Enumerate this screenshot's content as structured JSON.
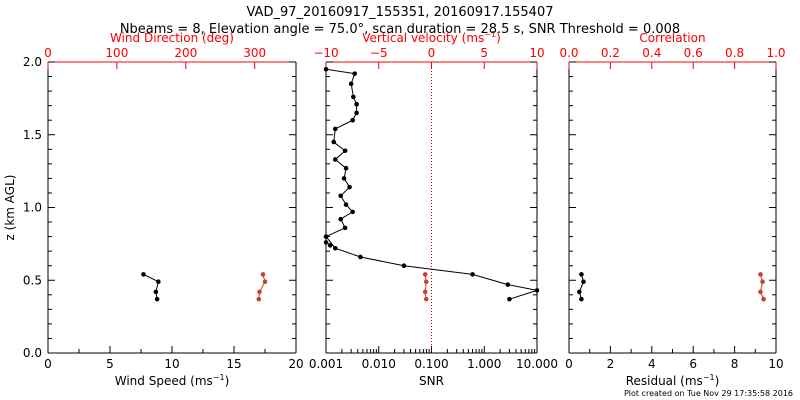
{
  "header": {
    "title": "VAD_97_20160917_155351, 20160917.155407",
    "subtitle": "Nbeams = 8, Elevation angle = 75.0°, scan duration = 28.5 s, SNR Threshold = 0.008"
  },
  "footer": {
    "credit": "Plot created on Tue Nov 29 17:35:58 2016"
  },
  "colors": {
    "primary": "#000000",
    "secondary": "#c8412c",
    "axis_red": "#ff0000",
    "dotted": "#cc0000"
  },
  "chart_data": [
    {
      "id": "panel1",
      "type": "scatter",
      "ylabel": "z (km AGL)",
      "ylim": [
        0.0,
        2.0
      ],
      "yticks": [
        0.0,
        0.5,
        1.0,
        1.5,
        2.0
      ],
      "ytick_labels": [
        "0.0",
        "0.5",
        "1.0",
        "1.5",
        "2.0"
      ],
      "bottom_axis": {
        "label": "Wind Speed (ms",
        "label_sup": "−1",
        "label_end": ")",
        "range": [
          0,
          20
        ],
        "ticks": [
          0,
          5,
          10,
          15,
          20
        ],
        "tick_labels": [
          "0",
          "5",
          "10",
          "15",
          "20"
        ]
      },
      "top_axis": {
        "label": "Wind Direction (deg)",
        "range": [
          0,
          360
        ],
        "ticks": [
          0,
          100,
          200,
          300
        ],
        "tick_labels": [
          "0",
          "100",
          "200",
          "300"
        ]
      },
      "series": [
        {
          "axis": "bottom",
          "color": "#000000",
          "points": [
            [
              7.7,
              0.54
            ],
            [
              8.9,
              0.49
            ],
            [
              8.7,
              0.42
            ],
            [
              8.8,
              0.37
            ]
          ]
        },
        {
          "axis": "top",
          "color": "#c8412c",
          "points": [
            [
              312,
              0.54
            ],
            [
              315,
              0.49
            ],
            [
              307,
              0.42
            ],
            [
              306,
              0.37
            ]
          ]
        }
      ]
    },
    {
      "id": "panel2",
      "type": "line",
      "ylim": [
        0.0,
        2.0
      ],
      "bottom_axis": {
        "label": "SNR",
        "scale": "log",
        "range": [
          0.001,
          10
        ],
        "ticks": [
          0.001,
          0.01,
          0.1,
          1,
          10
        ],
        "tick_labels": [
          "0.001",
          "0.010",
          "0.100",
          "1.000",
          "10.000"
        ]
      },
      "top_axis": {
        "label": "Vertical velocity (ms",
        "label_sup": "−1",
        "label_end": ")",
        "range": [
          -10,
          10
        ],
        "ticks": [
          -10,
          -5,
          0,
          5,
          10
        ],
        "tick_labels": [
          "−10",
          "−5",
          "0",
          "5",
          "10"
        ],
        "reference_line": 0
      },
      "series": [
        {
          "axis": "bottom",
          "color": "#000000",
          "points": [
            [
              0.001,
              1.95
            ],
            [
              0.0035,
              1.92
            ],
            [
              0.003,
              1.85
            ],
            [
              0.0033,
              1.76
            ],
            [
              0.0038,
              1.71
            ],
            [
              0.0038,
              1.65
            ],
            [
              0.0032,
              1.6
            ],
            [
              0.0015,
              1.54
            ],
            [
              0.0014,
              1.45
            ],
            [
              0.0023,
              1.39
            ],
            [
              0.0015,
              1.33
            ],
            [
              0.0024,
              1.27
            ],
            [
              0.0022,
              1.2
            ],
            [
              0.0028,
              1.14
            ],
            [
              0.0019,
              1.08
            ],
            [
              0.0024,
              1.02
            ],
            [
              0.0032,
              0.97
            ],
            [
              0.0019,
              0.92
            ],
            [
              0.0023,
              0.86
            ],
            [
              0.001,
              0.8
            ],
            [
              0.0015,
              0.72
            ],
            [
              0.0045,
              0.66
            ],
            [
              0.03,
              0.6
            ],
            [
              0.6,
              0.54
            ],
            [
              2.8,
              0.47
            ],
            [
              10.0,
              0.43
            ],
            [
              3.0,
              0.37
            ]
          ]
        },
        {
          "axis": "bottom",
          "color": "#000000",
          "note": "",
          "points": [
            [
              0.001,
              0.76
            ],
            [
              0.0012,
              0.74
            ]
          ]
        },
        {
          "axis": "top",
          "color": "#c8412c",
          "points": [
            [
              -0.6,
              0.54
            ],
            [
              -0.5,
              0.49
            ],
            [
              -0.6,
              0.42
            ],
            [
              -0.5,
              0.37
            ]
          ]
        }
      ]
    },
    {
      "id": "panel3",
      "type": "scatter",
      "ylim": [
        0.0,
        2.0
      ],
      "bottom_axis": {
        "label": "Residual (ms",
        "label_sup": "−1",
        "label_end": ")",
        "range": [
          0,
          10
        ],
        "ticks": [
          0,
          2,
          4,
          6,
          8,
          10
        ],
        "tick_labels": [
          "0",
          "2",
          "4",
          "6",
          "8",
          "10"
        ]
      },
      "top_axis": {
        "label": "Correlation",
        "range": [
          0,
          1
        ],
        "ticks": [
          0,
          0.2,
          0.4,
          0.6,
          0.8,
          1.0
        ],
        "tick_labels": [
          "0.0",
          "0.2",
          "0.4",
          "0.6",
          "0.8",
          "1.0"
        ]
      },
      "series": [
        {
          "axis": "bottom",
          "color": "#000000",
          "points": [
            [
              0.6,
              0.54
            ],
            [
              0.7,
              0.49
            ],
            [
              0.5,
              0.42
            ],
            [
              0.6,
              0.37
            ]
          ]
        },
        {
          "axis": "top",
          "color": "#c8412c",
          "points": [
            [
              0.925,
              0.54
            ],
            [
              0.935,
              0.49
            ],
            [
              0.925,
              0.42
            ],
            [
              0.94,
              0.37
            ]
          ]
        }
      ]
    }
  ]
}
